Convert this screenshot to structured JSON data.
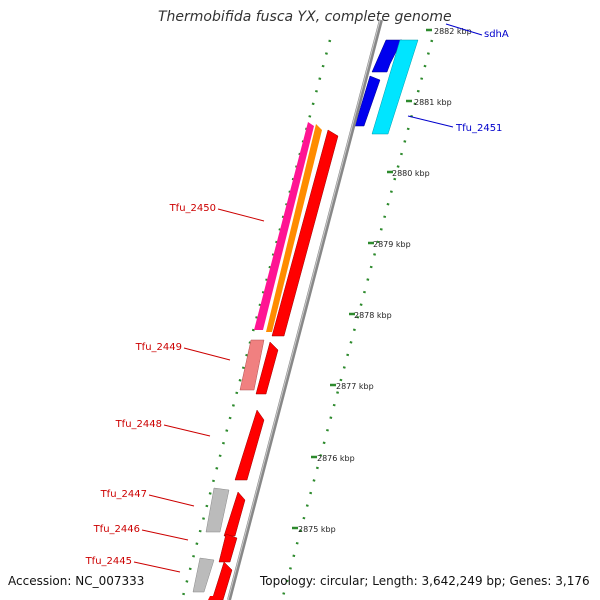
{
  "title": "Thermobifida fusca YX, complete genome",
  "accession": "Accession: NC_007333",
  "topology": "Topology: circular; Length: 3,642,249 bp; Genes: 3,176",
  "ticks": [
    "2882 kbp",
    "2881 kbp",
    "2880 kbp",
    "2879 kbp",
    "2878 kbp",
    "2877 kbp",
    "2876 kbp",
    "2875 kbp"
  ],
  "genes": [
    {
      "label": "sdhA",
      "color": "#0000cc"
    },
    {
      "label": "Tfu_2451",
      "color": "#0000cc"
    },
    {
      "label": "Tfu_2450",
      "color": "#cc0000"
    },
    {
      "label": "Tfu_2449",
      "color": "#cc0000"
    },
    {
      "label": "Tfu_2448",
      "color": "#cc0000"
    },
    {
      "label": "Tfu_2447",
      "color": "#cc0000"
    },
    {
      "label": "Tfu_2446",
      "color": "#cc0000"
    },
    {
      "label": "Tfu_2445",
      "color": "#cc0000"
    }
  ],
  "colors": {
    "backbone": "#888888",
    "tick_dots": "#2d8a2d",
    "cds_forward": "#ff0000",
    "cds_light": "#f08080",
    "rna": "#ff8c00",
    "magenta": "#ff1493",
    "blue": "#0000ff",
    "cyan": "#00e5ff",
    "grey": "#bbbbbb"
  }
}
